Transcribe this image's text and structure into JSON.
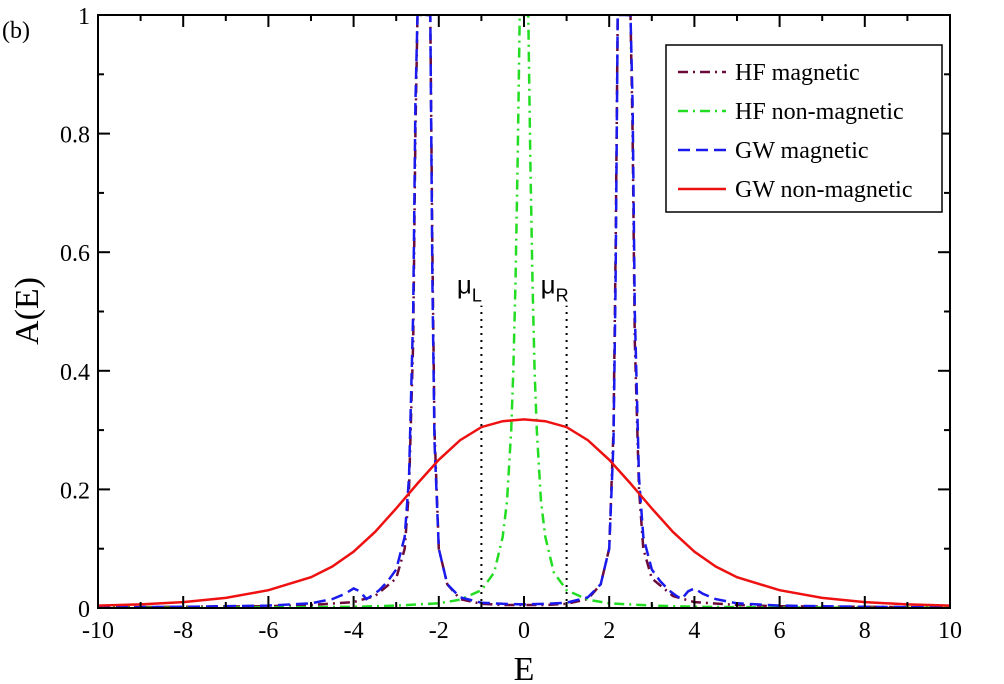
{
  "panel_label": "(b)",
  "chart_data": {
    "type": "line",
    "title": "",
    "xlabel": "E",
    "ylabel": "A(E)",
    "xlim": [
      -10,
      10
    ],
    "ylim": [
      0,
      1
    ],
    "grid": false,
    "legend_position": "top-right",
    "x_ticks": [
      -10,
      -8,
      -6,
      -4,
      -2,
      0,
      2,
      4,
      6,
      8,
      10
    ],
    "y_ticks": [
      0,
      0.2,
      0.4,
      0.6,
      0.8,
      1
    ],
    "x_tick_labels": [
      "-10",
      "-8",
      "-6",
      "-4",
      "-2",
      "0",
      "2",
      "4",
      "6",
      "8",
      "10"
    ],
    "y_tick_labels": [
      "0",
      "0.2",
      "0.4",
      "0.6",
      "0.8",
      "1"
    ],
    "series": [
      {
        "name": "HF magnetic",
        "color": "#6b0a3a",
        "style": "dash-dot",
        "x": [
          -10,
          -8,
          -6,
          -5,
          -4,
          -3.5,
          -3,
          -2.8,
          -2.7,
          -2.6,
          -2.55,
          -2.5,
          -2.45,
          -2.4,
          -2.35,
          -2.3,
          -2.25,
          -2.2,
          -2.15,
          -2.1,
          -2.0,
          -1.8,
          -1.5,
          -1.0,
          -0.5,
          0,
          0.5,
          1.0,
          1.5,
          1.8,
          2.0,
          2.1,
          2.15,
          2.2,
          2.25,
          2.3,
          2.35,
          2.4,
          2.45,
          2.5,
          2.55,
          2.6,
          2.7,
          2.8,
          3,
          3.5,
          4,
          5,
          6,
          8,
          10
        ],
        "y": [
          0.001,
          0.002,
          0.003,
          0.005,
          0.01,
          0.02,
          0.05,
          0.1,
          0.2,
          0.45,
          0.8,
          1.0,
          1.0,
          1.0,
          1.0,
          1.0,
          1.0,
          1.0,
          0.6,
          0.3,
          0.1,
          0.04,
          0.015,
          0.007,
          0.005,
          0.005,
          0.005,
          0.007,
          0.015,
          0.04,
          0.1,
          0.3,
          0.6,
          1.0,
          1.0,
          1.0,
          1.0,
          1.0,
          1.0,
          1.0,
          0.8,
          0.45,
          0.2,
          0.1,
          0.05,
          0.02,
          0.01,
          0.005,
          0.003,
          0.002,
          0.001
        ]
      },
      {
        "name": "HF non-magnetic",
        "color": "#22dd22",
        "style": "dash-dot",
        "x": [
          -10,
          -8,
          -6,
          -4,
          -3,
          -2,
          -1.5,
          -1,
          -0.7,
          -0.5,
          -0.4,
          -0.3,
          -0.25,
          -0.2,
          -0.15,
          -0.12,
          -0.1,
          0,
          0.1,
          0.12,
          0.15,
          0.2,
          0.25,
          0.3,
          0.4,
          0.5,
          0.7,
          1,
          1.5,
          2,
          3,
          4,
          6,
          8,
          10
        ],
        "y": [
          0.0003,
          0.0005,
          0.001,
          0.002,
          0.004,
          0.008,
          0.014,
          0.03,
          0.06,
          0.12,
          0.18,
          0.3,
          0.4,
          0.55,
          0.75,
          0.9,
          1.0,
          1.0,
          1.0,
          0.9,
          0.75,
          0.55,
          0.4,
          0.3,
          0.18,
          0.12,
          0.06,
          0.03,
          0.014,
          0.008,
          0.004,
          0.002,
          0.001,
          0.0005,
          0.0003
        ]
      },
      {
        "name": "GW magnetic",
        "color": "#1a1aee",
        "style": "dashed",
        "x": [
          -10,
          -8,
          -6,
          -5,
          -4.5,
          -4.2,
          -4.0,
          -3.85,
          -3.7,
          -3.55,
          -3.4,
          -3.2,
          -3.0,
          -2.8,
          -2.7,
          -2.6,
          -2.55,
          -2.5,
          -2.45,
          -2.4,
          -2.35,
          -2.3,
          -2.25,
          -2.2,
          -2.15,
          -2.1,
          -2.0,
          -1.8,
          -1.5,
          -1.0,
          -0.5,
          0,
          0.5,
          1.0,
          1.5,
          1.8,
          2.0,
          2.1,
          2.15,
          2.2,
          2.25,
          2.3,
          2.35,
          2.4,
          2.45,
          2.5,
          2.55,
          2.6,
          2.7,
          2.8,
          3.0,
          3.2,
          3.4,
          3.55,
          3.7,
          3.85,
          4.0,
          4.2,
          4.5,
          5,
          6,
          8,
          10
        ],
        "y": [
          0.001,
          0.002,
          0.004,
          0.008,
          0.015,
          0.024,
          0.033,
          0.028,
          0.015,
          0.022,
          0.03,
          0.045,
          0.065,
          0.12,
          0.22,
          0.5,
          0.85,
          1.0,
          1.0,
          1.0,
          1.0,
          1.0,
          1.0,
          1.0,
          0.55,
          0.28,
          0.1,
          0.04,
          0.018,
          0.009,
          0.007,
          0.006,
          0.007,
          0.009,
          0.018,
          0.04,
          0.1,
          0.28,
          0.55,
          1.0,
          1.0,
          1.0,
          1.0,
          1.0,
          1.0,
          1.0,
          0.85,
          0.5,
          0.22,
          0.12,
          0.065,
          0.045,
          0.03,
          0.022,
          0.015,
          0.028,
          0.033,
          0.024,
          0.015,
          0.008,
          0.004,
          0.002,
          0.001
        ]
      },
      {
        "name": "GW non-magnetic",
        "color": "#ee1111",
        "style": "solid",
        "x": [
          -10,
          -9,
          -8,
          -7,
          -6,
          -5,
          -4.5,
          -4,
          -3.5,
          -3,
          -2.5,
          -2,
          -1.5,
          -1,
          -0.5,
          0,
          0.5,
          1,
          1.5,
          2,
          2.5,
          3,
          3.5,
          4,
          4.5,
          5,
          6,
          7,
          8,
          9,
          10
        ],
        "y": [
          0.004,
          0.006,
          0.01,
          0.017,
          0.03,
          0.052,
          0.07,
          0.095,
          0.128,
          0.168,
          0.21,
          0.25,
          0.283,
          0.305,
          0.315,
          0.318,
          0.315,
          0.305,
          0.283,
          0.25,
          0.21,
          0.168,
          0.128,
          0.095,
          0.07,
          0.052,
          0.03,
          0.017,
          0.01,
          0.006,
          0.004
        ]
      }
    ],
    "reference_lines": [
      {
        "name": "mu_L",
        "x": -1,
        "y_top": 0.51,
        "color": "#000000",
        "style": "dotted"
      },
      {
        "name": "mu_R",
        "x": 1,
        "y_top": 0.51,
        "color": "#000000",
        "style": "dotted"
      }
    ],
    "annotations": [
      {
        "symbol": "μ",
        "subscript": "L",
        "x": -1,
        "y": 0.52
      },
      {
        "symbol": "μ",
        "subscript": "R",
        "x": 1,
        "y": 0.52
      }
    ]
  }
}
